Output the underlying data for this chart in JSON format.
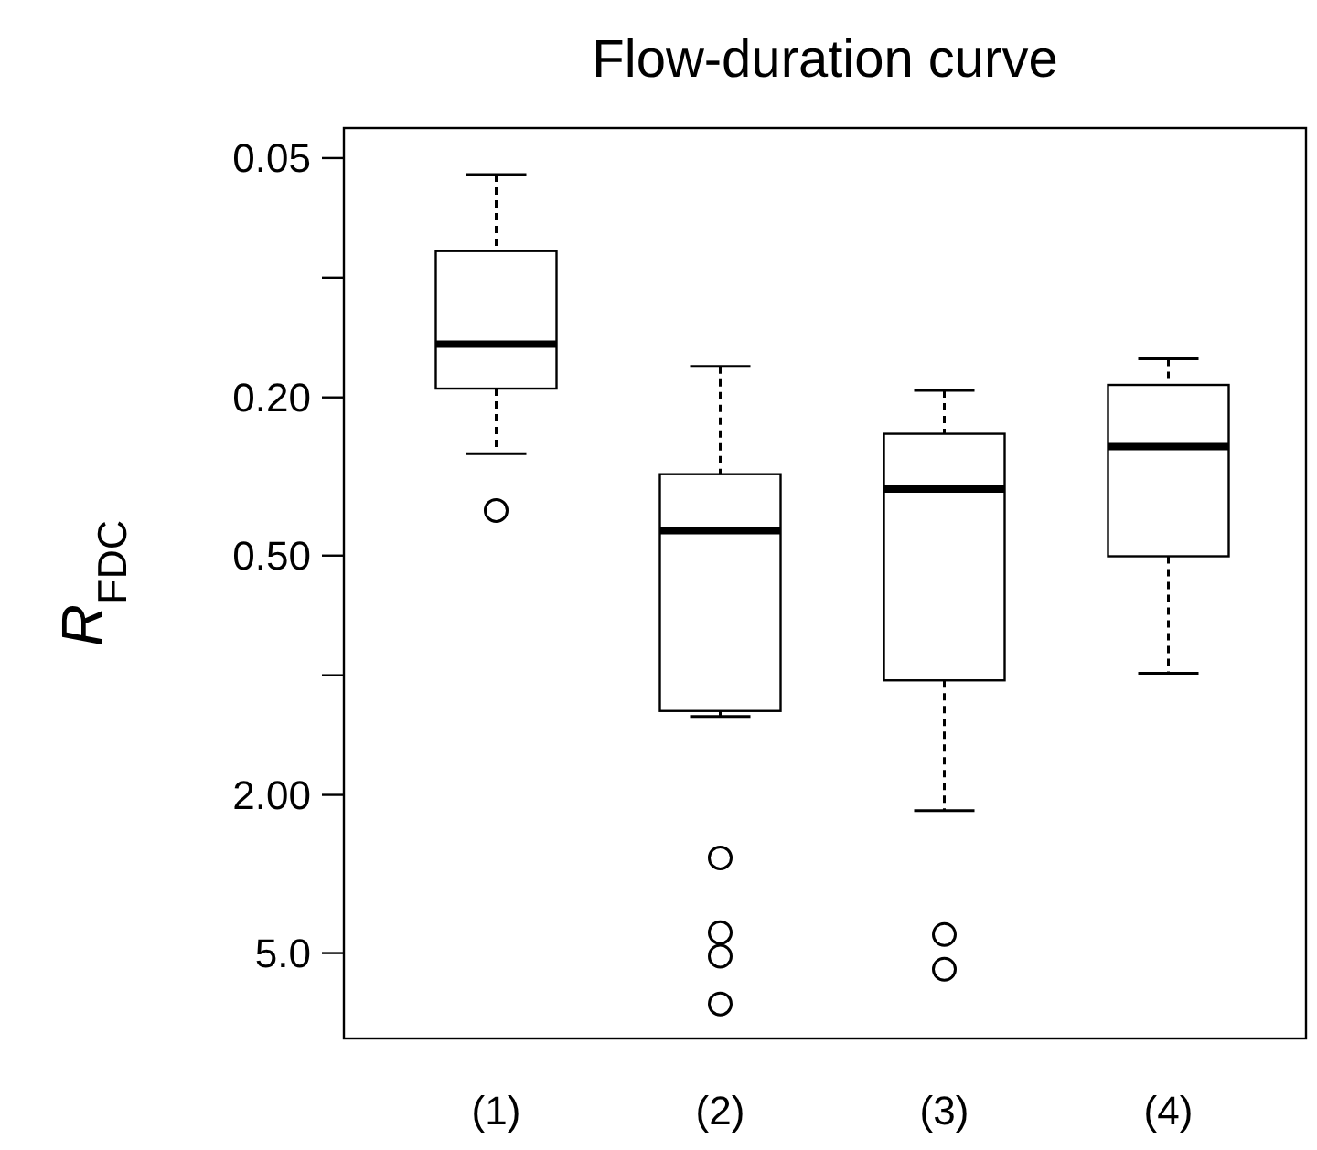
{
  "chart_data": {
    "type": "box",
    "title": "Flow-duration curve",
    "ylabel": "R$_{FDC}$",
    "categories": [
      "(1)",
      "(2)",
      "(3)",
      "(4)"
    ],
    "ylim": [
      8.2,
      0.042
    ],
    "log": true,
    "grid": false,
    "yticks": [
      {
        "value": 0.05,
        "label": "0.05"
      },
      {
        "value": 0.1,
        "label": null
      },
      {
        "value": 0.2,
        "label": "0.20"
      },
      {
        "value": 0.5,
        "label": "0.50"
      },
      {
        "value": 1,
        "label": null
      },
      {
        "value": 2,
        "label": "2.00"
      },
      {
        "value": 5,
        "label": "5.0"
      }
    ],
    "boxes": [
      {
        "low": 0.277,
        "q1": 0.19,
        "median": 0.147,
        "q3": 0.0857,
        "high": 0.055,
        "outliers": [
          0.385
        ]
      },
      {
        "low": 1.27,
        "q1": 1.23,
        "median": 0.433,
        "q3": 0.312,
        "high": 0.167,
        "outliers": [
          2.88,
          4.44,
          5.09,
          6.71
        ]
      },
      {
        "low": 2.19,
        "q1": 1.03,
        "median": 0.34,
        "q3": 0.247,
        "high": 0.192,
        "outliers": [
          4.49,
          5.49
        ]
      },
      {
        "low": 0.989,
        "q1": 0.502,
        "median": 0.266,
        "q3": 0.186,
        "high": 0.16
      }
    ]
  }
}
